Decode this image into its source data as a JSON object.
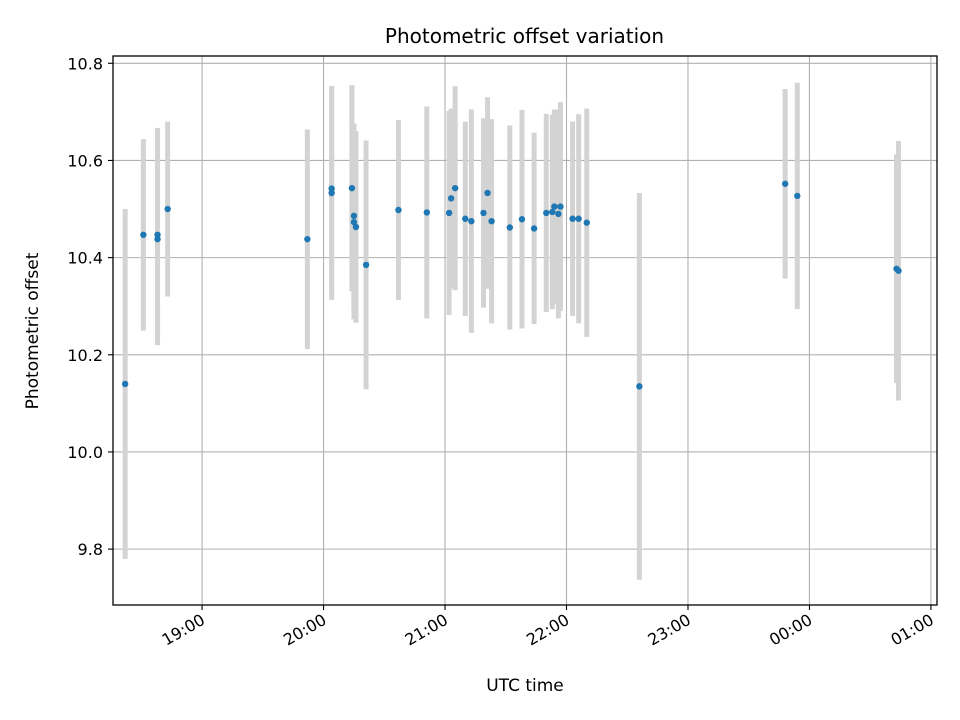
{
  "chart_data": {
    "type": "scatter",
    "title": "Photometric offset variation",
    "xlabel": "UTC time",
    "ylabel": "Photometric offset",
    "x_unit": "UTC time (HH:MM)",
    "xlim": [
      "18:16",
      "01:03"
    ],
    "ylim": [
      9.685,
      10.815
    ],
    "grid": true,
    "x_tick_labels": [
      "19:00",
      "20:00",
      "21:00",
      "22:00",
      "23:00",
      "00:00",
      "01:00"
    ],
    "y_tick_labels": [
      "9.8",
      "10.0",
      "10.2",
      "10.4",
      "10.6",
      "10.8"
    ],
    "y_ticks": [
      9.8,
      10.0,
      10.2,
      10.4,
      10.6,
      10.8
    ],
    "point_color": "#1f77b4",
    "errorbar_color": "#d3d3d3",
    "points": [
      {
        "x": "18:22",
        "y": 10.14,
        "err": 0.36
      },
      {
        "x": "18:31",
        "y": 10.447,
        "err": 0.197
      },
      {
        "x": "18:38",
        "y": 10.447,
        "err": 0.22
      },
      {
        "x": "18:38",
        "y": 10.438,
        "err": 0.218
      },
      {
        "x": "18:43",
        "y": 10.5,
        "err": 0.18
      },
      {
        "x": "19:52",
        "y": 10.438,
        "err": 0.226
      },
      {
        "x": "20:04",
        "y": 10.533,
        "err": 0.22
      },
      {
        "x": "20:04",
        "y": 10.542,
        "err": 0.21
      },
      {
        "x": "20:14",
        "y": 10.543,
        "err": 0.212
      },
      {
        "x": "20:15",
        "y": 10.486,
        "err": 0.19
      },
      {
        "x": "20:15",
        "y": 10.473,
        "err": 0.2
      },
      {
        "x": "20:16",
        "y": 10.463,
        "err": 0.197
      },
      {
        "x": "20:21",
        "y": 10.385,
        "err": 0.256
      },
      {
        "x": "20:37",
        "y": 10.498,
        "err": 0.185
      },
      {
        "x": "20:51",
        "y": 10.493,
        "err": 0.218
      },
      {
        "x": "21:02",
        "y": 10.492,
        "err": 0.21
      },
      {
        "x": "21:03",
        "y": 10.522,
        "err": 0.185
      },
      {
        "x": "21:05",
        "y": 10.543,
        "err": 0.21
      },
      {
        "x": "21:10",
        "y": 10.48,
        "err": 0.2
      },
      {
        "x": "21:13",
        "y": 10.475,
        "err": 0.23
      },
      {
        "x": "21:19",
        "y": 10.492,
        "err": 0.195
      },
      {
        "x": "21:21",
        "y": 10.533,
        "err": 0.197
      },
      {
        "x": "21:23",
        "y": 10.475,
        "err": 0.21
      },
      {
        "x": "21:32",
        "y": 10.462,
        "err": 0.21
      },
      {
        "x": "21:38",
        "y": 10.479,
        "err": 0.225
      },
      {
        "x": "21:44",
        "y": 10.46,
        "err": 0.197
      },
      {
        "x": "21:50",
        "y": 10.492,
        "err": 0.204
      },
      {
        "x": "21:53",
        "y": 10.494,
        "err": 0.2
      },
      {
        "x": "21:54",
        "y": 10.505,
        "err": 0.2
      },
      {
        "x": "21:56",
        "y": 10.49,
        "err": 0.215
      },
      {
        "x": "21:57",
        "y": 10.505,
        "err": 0.215
      },
      {
        "x": "22:03",
        "y": 10.48,
        "err": 0.2
      },
      {
        "x": "22:06",
        "y": 10.48,
        "err": 0.215
      },
      {
        "x": "22:10",
        "y": 10.472,
        "err": 0.235
      },
      {
        "x": "22:36",
        "y": 10.135,
        "err": 0.398
      },
      {
        "x": "23:48",
        "y": 10.552,
        "err": 0.195
      },
      {
        "x": "23:54",
        "y": 10.527,
        "err": 0.233
      },
      {
        "x": "00:43",
        "y": 10.377,
        "err": 0.235
      },
      {
        "x": "00:44",
        "y": 10.373,
        "err": 0.267
      }
    ]
  }
}
